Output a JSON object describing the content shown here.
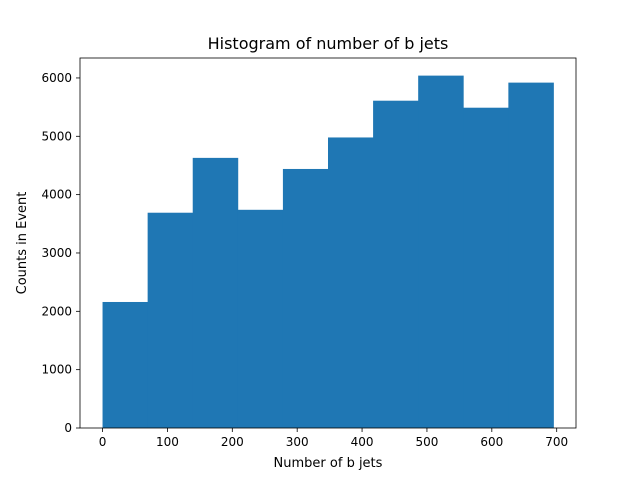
{
  "chart_data": {
    "type": "bar",
    "title": "Histogram of number of b jets",
    "xlabel": "Number of b jets",
    "ylabel": "Counts in Event",
    "bin_edges": [
      0,
      69.5,
      139,
      208.5,
      278,
      347.5,
      417,
      486.5,
      556,
      625.5,
      695
    ],
    "values": [
      2160,
      3690,
      4630,
      3740,
      4440,
      4980,
      5610,
      6040,
      5490,
      5920
    ],
    "xlim": [
      -34.75,
      729.75
    ],
    "ylim": [
      0,
      6342
    ],
    "xticks": [
      0,
      100,
      200,
      300,
      400,
      500,
      600,
      700
    ],
    "yticks": [
      0,
      1000,
      2000,
      3000,
      4000,
      5000,
      6000
    ],
    "bar_color": "#1f77b4",
    "grid": false,
    "legend": "none"
  }
}
